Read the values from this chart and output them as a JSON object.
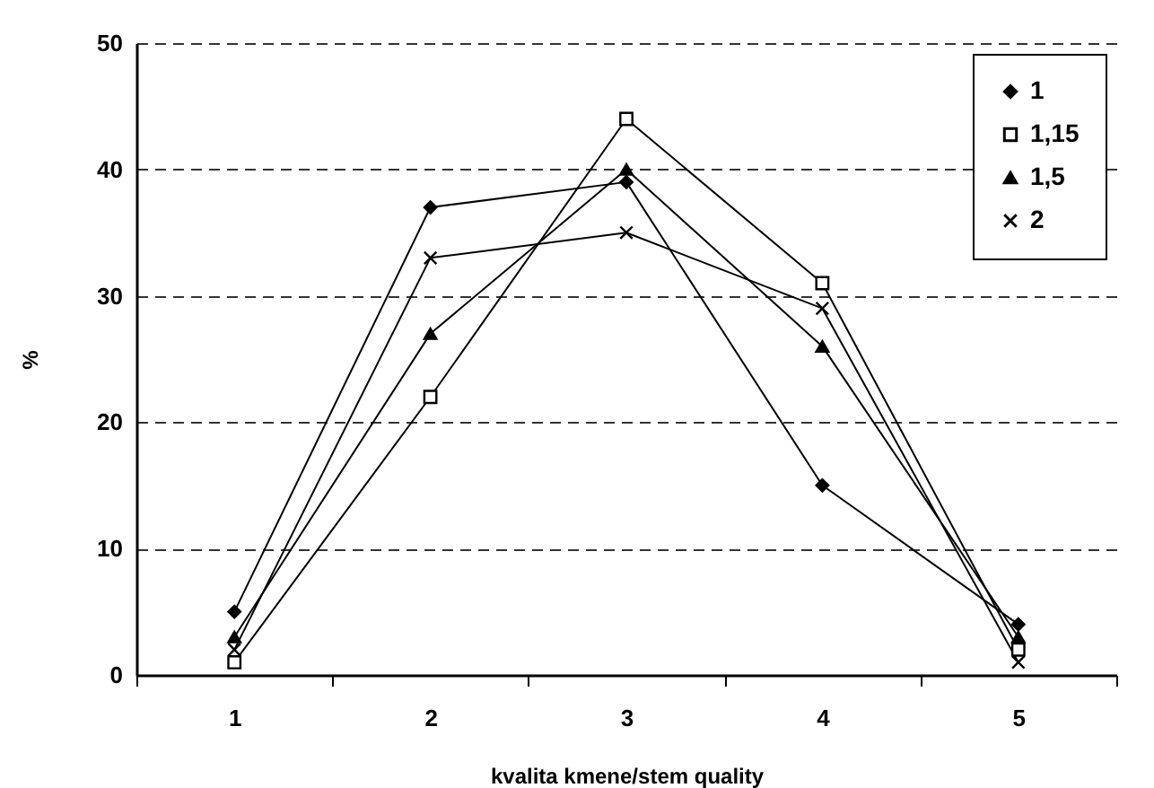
{
  "chart_data": {
    "type": "line",
    "xlabel": "kvalita kmene/stem quality",
    "ylabel": "%",
    "categories": [
      "1",
      "2",
      "3",
      "4",
      "5"
    ],
    "series": [
      {
        "name": "1",
        "color": "#000000",
        "marker": "diamond",
        "values": [
          5,
          37,
          39,
          15,
          4
        ]
      },
      {
        "name": "1,15",
        "color": "#000000",
        "marker": "square",
        "values": [
          1,
          22,
          44,
          31,
          2
        ]
      },
      {
        "name": "1,5",
        "color": "#000000",
        "marker": "triangle",
        "values": [
          3,
          27,
          40,
          26,
          3
        ]
      },
      {
        "name": "2",
        "color": "#000000",
        "marker": "cross",
        "values": [
          2,
          33,
          35,
          29,
          1
        ]
      }
    ],
    "ylim": [
      0,
      50
    ],
    "yticks": [
      0,
      10,
      20,
      30,
      40,
      50
    ],
    "grid": "y",
    "legend": "top right",
    "line_style": "solid"
  }
}
